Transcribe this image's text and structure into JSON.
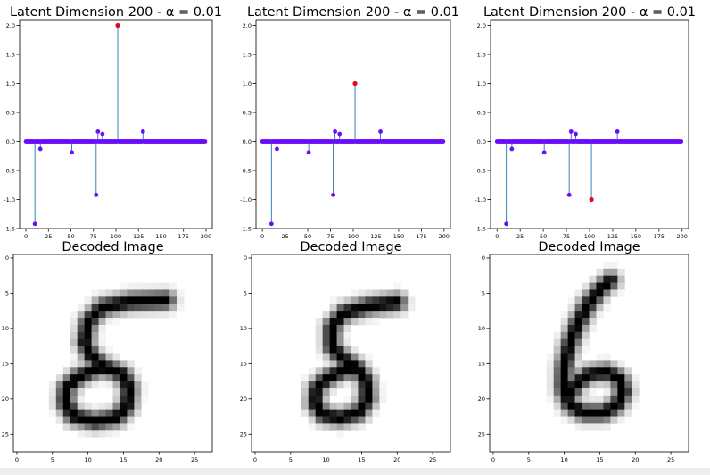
{
  "chart_data": [
    {
      "type": "stem",
      "title": "Latent Dimension 200 - α = 0.01",
      "xlim": [
        -7,
        207
      ],
      "ylim": [
        -1.5,
        2.1
      ],
      "xticks": [
        0,
        25,
        50,
        75,
        100,
        125,
        150,
        175,
        200
      ],
      "yticks": [
        -1.5,
        -1.0,
        -0.5,
        0.0,
        0.5,
        1.0,
        1.5,
        2.0
      ],
      "n_points": 200,
      "stems": [
        {
          "x": 10,
          "y": -1.42
        },
        {
          "x": 16,
          "y": -0.13
        },
        {
          "x": 51,
          "y": -0.19
        },
        {
          "x": 78,
          "y": -0.92
        },
        {
          "x": 80,
          "y": 0.17
        },
        {
          "x": 85,
          "y": 0.13
        },
        {
          "x": 130,
          "y": 0.17
        }
      ],
      "highlight": {
        "x": 102,
        "y": 2.0
      }
    },
    {
      "type": "stem",
      "title": "Latent Dimension 200 - α = 0.01",
      "xlim": [
        -7,
        207
      ],
      "ylim": [
        -1.5,
        2.1
      ],
      "xticks": [
        0,
        25,
        50,
        75,
        100,
        125,
        150,
        175,
        200
      ],
      "yticks": [
        -1.5,
        -1.0,
        -0.5,
        0.0,
        0.5,
        1.0,
        1.5,
        2.0
      ],
      "n_points": 200,
      "stems": [
        {
          "x": 10,
          "y": -1.42
        },
        {
          "x": 16,
          "y": -0.13
        },
        {
          "x": 51,
          "y": -0.19
        },
        {
          "x": 78,
          "y": -0.92
        },
        {
          "x": 80,
          "y": 0.17
        },
        {
          "x": 85,
          "y": 0.13
        },
        {
          "x": 130,
          "y": 0.17
        }
      ],
      "highlight": {
        "x": 102,
        "y": 1.0
      }
    },
    {
      "type": "stem",
      "title": "Latent Dimension 200 - α = 0.01",
      "xlim": [
        -7,
        207
      ],
      "ylim": [
        -1.5,
        2.1
      ],
      "xticks": [
        0,
        25,
        50,
        75,
        100,
        125,
        150,
        175,
        200
      ],
      "yticks": [
        -1.5,
        -1.0,
        -0.5,
        0.0,
        0.5,
        1.0,
        1.5,
        2.0
      ],
      "n_points": 200,
      "stems": [
        {
          "x": 10,
          "y": -1.42
        },
        {
          "x": 16,
          "y": -0.13
        },
        {
          "x": 51,
          "y": -0.19
        },
        {
          "x": 78,
          "y": -0.92
        },
        {
          "x": 80,
          "y": 0.17
        },
        {
          "x": 85,
          "y": 0.13
        },
        {
          "x": 130,
          "y": 0.17
        }
      ],
      "highlight": {
        "x": 102,
        "y": -1.0
      }
    },
    {
      "type": "heatmap",
      "title": "Decoded Image",
      "digit": "8",
      "xlim": [
        -0.5,
        27.5
      ],
      "ylim": [
        27.5,
        -0.5
      ],
      "xticks": [
        0,
        5,
        10,
        15,
        20,
        25
      ],
      "yticks": [
        0,
        5,
        10,
        15,
        20,
        25
      ],
      "strokes": [
        [
          [
            21,
            6
          ],
          [
            16,
            6.2
          ],
          [
            12,
            7
          ],
          [
            10,
            9
          ],
          [
            9.5,
            12
          ],
          [
            10.5,
            14
          ],
          [
            12.5,
            15.5
          ],
          [
            14.8,
            16.5
          ],
          [
            15.8,
            18.5
          ],
          [
            15.5,
            21
          ],
          [
            14,
            22.7
          ],
          [
            11,
            23.2
          ],
          [
            8,
            22.5
          ],
          [
            6.8,
            20.5
          ],
          [
            7,
            18.5
          ],
          [
            8.5,
            17
          ],
          [
            10.5,
            16
          ],
          [
            12.5,
            15.5
          ]
        ]
      ]
    },
    {
      "type": "heatmap",
      "title": "Decoded Image",
      "digit": "8",
      "xlim": [
        -0.5,
        27.5
      ],
      "ylim": [
        27.5,
        -0.5
      ],
      "xticks": [
        0,
        5,
        10,
        15,
        20,
        25
      ],
      "yticks": [
        0,
        5,
        10,
        15,
        20,
        25
      ],
      "strokes": [
        [
          [
            20,
            6.3
          ],
          [
            16,
            6.8
          ],
          [
            12.5,
            7.8
          ],
          [
            10.8,
            9.8
          ],
          [
            10.8,
            12.5
          ],
          [
            12.3,
            14.2
          ],
          [
            14.3,
            15.6
          ],
          [
            15.6,
            17.5
          ],
          [
            15.8,
            20
          ],
          [
            14.5,
            22
          ],
          [
            12,
            22.7
          ],
          [
            9.6,
            22.3
          ],
          [
            8.4,
            20.6
          ],
          [
            8.6,
            18.6
          ],
          [
            10,
            17.2
          ],
          [
            12.3,
            16
          ],
          [
            14.3,
            15.6
          ]
        ]
      ]
    },
    {
      "type": "heatmap",
      "title": "Decoded Image",
      "digit": "6",
      "xlim": [
        -0.5,
        27.5
      ],
      "ylim": [
        27.5,
        -0.5
      ],
      "xticks": [
        0,
        5,
        10,
        15,
        20,
        25
      ],
      "yticks": [
        0,
        5,
        10,
        15,
        20,
        25
      ],
      "strokes": [
        [
          [
            16.5,
            3.2
          ],
          [
            15,
            4.5
          ],
          [
            13.2,
            6.8
          ],
          [
            11.8,
            9.5
          ],
          [
            10.7,
            12.5
          ],
          [
            10,
            15.5
          ],
          [
            9.9,
            18.5
          ],
          [
            10.8,
            20.8
          ],
          [
            12.8,
            22
          ],
          [
            15.5,
            22
          ],
          [
            17.5,
            20.8
          ],
          [
            18.3,
            19
          ],
          [
            17.8,
            17.2
          ],
          [
            16,
            16.2
          ],
          [
            13.5,
            16.5
          ],
          [
            11.8,
            17.8
          ],
          [
            10.6,
            19.4
          ]
        ]
      ]
    }
  ]
}
